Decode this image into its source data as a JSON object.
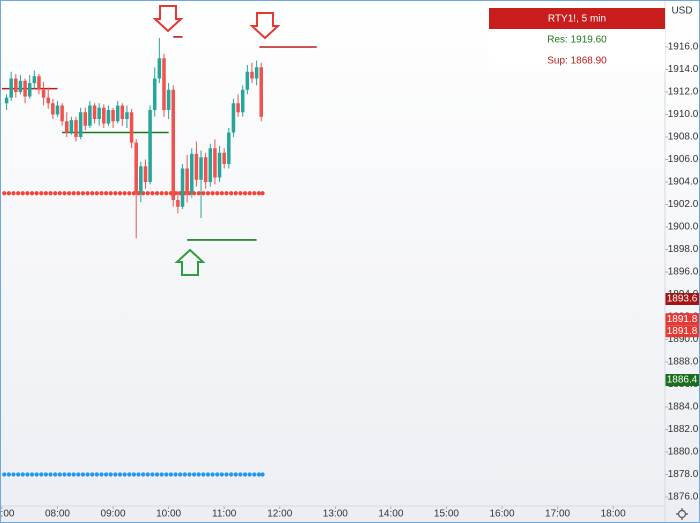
{
  "chart_data": {
    "type": "candlestick",
    "title": "RTY1!, 5 min",
    "resistance": "Res: 1919.60",
    "support": "Sup: 1868.90",
    "currency": "USD",
    "up_color": "#26a69a",
    "down_color": "#ef5350",
    "x": [
      "07:05",
      "07:10",
      "07:15",
      "07:20",
      "07:25",
      "07:30",
      "07:35",
      "07:40",
      "07:45",
      "07:50",
      "07:55",
      "08:00",
      "08:05",
      "08:10",
      "08:15",
      "08:20",
      "08:25",
      "08:30",
      "08:35",
      "08:40",
      "08:45",
      "08:50",
      "08:55",
      "09:00",
      "09:05",
      "09:10",
      "09:15",
      "09:20",
      "09:25",
      "09:30",
      "09:35",
      "09:40",
      "09:45",
      "09:50",
      "09:55",
      "10:00",
      "10:05",
      "10:10",
      "10:15",
      "10:20",
      "10:25",
      "10:30",
      "10:35",
      "10:40",
      "10:45",
      "10:50",
      "10:55",
      "11:00",
      "11:05",
      "11:10",
      "11:15",
      "11:20",
      "11:25",
      "11:30",
      "11:35",
      "11:40"
    ],
    "open": [
      1911.0,
      1911.5,
      1913.2,
      1912.0,
      1913.0,
      1911.6,
      1912.8,
      1913.4,
      1912.2,
      1911.5,
      1911.0,
      1910.0,
      1910.8,
      1909.4,
      1908.4,
      1909.5,
      1908.0,
      1910.2,
      1909.0,
      1910.8,
      1909.6,
      1910.6,
      1909.2,
      1910.4,
      1909.4,
      1910.8,
      1909.6,
      1910.2,
      1907.5,
      1903.0,
      1905.4,
      1904.0,
      1910.4,
      1913.2,
      1915.0,
      1910.4,
      1912.2,
      1902.4,
      1901.8,
      1905.2,
      1903.0,
      1906.5,
      1904.2,
      1906.2,
      1904.0,
      1907.0,
      1904.4,
      1906.6,
      1905.6,
      1908.4,
      1911.0,
      1910.2,
      1912.2,
      1913.8,
      1913.2,
      1914.2
    ],
    "high": [
      1911.8,
      1913.8,
      1913.6,
      1913.5,
      1913.2,
      1913.5,
      1913.9,
      1913.6,
      1912.9,
      1912.4,
      1911.4,
      1911.2,
      1911.0,
      1910.2,
      1909.8,
      1909.8,
      1910.6,
      1910.6,
      1911.2,
      1911.0,
      1911.0,
      1910.9,
      1910.8,
      1910.6,
      1911.2,
      1911.0,
      1910.8,
      1910.5,
      1907.8,
      1905.8,
      1906.0,
      1910.8,
      1914.2,
      1916.8,
      1915.4,
      1912.8,
      1912.6,
      1903.2,
      1905.6,
      1906.4,
      1907.0,
      1907.6,
      1906.8,
      1906.6,
      1907.4,
      1907.8,
      1907.2,
      1907.0,
      1908.8,
      1911.4,
      1911.8,
      1912.6,
      1914.4,
      1914.6,
      1914.8,
      1914.6
    ],
    "low": [
      1910.4,
      1911.2,
      1911.5,
      1911.8,
      1911.0,
      1911.4,
      1912.2,
      1911.8,
      1910.8,
      1910.5,
      1909.6,
      1909.8,
      1909.0,
      1908.0,
      1908.2,
      1907.6,
      1907.8,
      1908.6,
      1908.8,
      1909.2,
      1909.0,
      1908.8,
      1909.0,
      1908.8,
      1909.2,
      1909.0,
      1908.8,
      1907.0,
      1899.0,
      1902.2,
      1903.4,
      1903.8,
      1909.8,
      1912.8,
      1909.8,
      1909.6,
      1901.8,
      1901.2,
      1901.6,
      1902.2,
      1902.6,
      1903.6,
      1900.8,
      1903.4,
      1903.6,
      1903.8,
      1904.0,
      1905.2,
      1905.2,
      1908.0,
      1909.8,
      1909.8,
      1911.8,
      1912.8,
      1912.6,
      1909.4
    ],
    "close": [
      1911.5,
      1913.2,
      1912.0,
      1913.0,
      1911.6,
      1912.8,
      1913.4,
      1912.2,
      1911.5,
      1911.0,
      1910.0,
      1910.8,
      1909.4,
      1908.4,
      1909.5,
      1908.0,
      1910.2,
      1909.0,
      1910.8,
      1909.6,
      1910.6,
      1909.2,
      1910.4,
      1909.4,
      1910.8,
      1909.6,
      1910.2,
      1907.5,
      1903.0,
      1905.4,
      1904.0,
      1910.4,
      1913.2,
      1915.0,
      1910.4,
      1912.2,
      1902.4,
      1901.8,
      1905.2,
      1903.0,
      1906.5,
      1904.2,
      1906.2,
      1904.0,
      1907.0,
      1904.4,
      1906.6,
      1905.6,
      1908.4,
      1911.0,
      1910.2,
      1912.2,
      1913.8,
      1913.2,
      1914.2,
      1909.8
    ],
    "dot_lines": [
      {
        "value": 1903.0,
        "color": "#f44336"
      },
      {
        "value": 1878.0,
        "color": "#2196f3"
      }
    ],
    "levels": [
      {
        "value": 1912.3,
        "from": "07:00",
        "to": "08:00",
        "color": "#b71c1c"
      },
      {
        "value": 1908.4,
        "from": "08:05",
        "to": "10:00",
        "color": "#1b7a1b"
      },
      {
        "value": 1916.9,
        "from": "10:05",
        "to": "10:15",
        "color": "#b71c1c"
      },
      {
        "value": 1916.0,
        "from": "11:38",
        "to": "12:40",
        "color": "#b71c1c"
      },
      {
        "value": 1898.85,
        "from": "10:20",
        "to": "11:35",
        "color": "#1b7a1b"
      }
    ],
    "price_tags": [
      {
        "value": 1893.6,
        "color": "#a31515"
      },
      {
        "value": 1891.8,
        "color": "#e53935"
      },
      {
        "value": 1891.8,
        "color": "#e53935"
      },
      {
        "value": 1886.4,
        "color": "#1b6e1b"
      }
    ],
    "xlim": [
      "06:59",
      "18:56"
    ],
    "xticks": [
      "07:00",
      "08:00",
      "09:00",
      "10:00",
      "11:00",
      "12:00",
      "13:00",
      "14:00",
      "15:00",
      "16:00",
      "17:00",
      "18:00"
    ],
    "ylim": [
      1875.2,
      1920.09
    ],
    "yticks": [
      {
        "value": 1876,
        "label": "1876.0"
      },
      {
        "value": 1878,
        "label": "1878.0"
      },
      {
        "value": 1880,
        "label": "1880.0"
      },
      {
        "value": 1882,
        "label": "1882.0"
      },
      {
        "value": 1884,
        "label": "1884.0"
      },
      {
        "value": 1886,
        "label": "1886.0"
      },
      {
        "value": 1888,
        "label": "1888.0"
      },
      {
        "value": 1890,
        "label": "1890.0"
      },
      {
        "value": 1892,
        "label": "1892.0"
      },
      {
        "value": 1894,
        "label": "1894.0"
      },
      {
        "value": 1896,
        "label": "1896.0"
      },
      {
        "value": 1898,
        "label": "1898.0"
      },
      {
        "value": 1900,
        "label": "1900.0"
      },
      {
        "value": 1902,
        "label": "1902.0"
      },
      {
        "value": 1904,
        "label": "1904.0"
      },
      {
        "value": 1906,
        "label": "1906.0"
      },
      {
        "value": 1908,
        "label": "1908.0"
      },
      {
        "value": 1910,
        "label": "1910.0"
      },
      {
        "value": 1912,
        "label": "1912.0"
      },
      {
        "value": 1914,
        "label": "1914.0"
      },
      {
        "value": 1916,
        "label": "1916.0"
      }
    ]
  }
}
